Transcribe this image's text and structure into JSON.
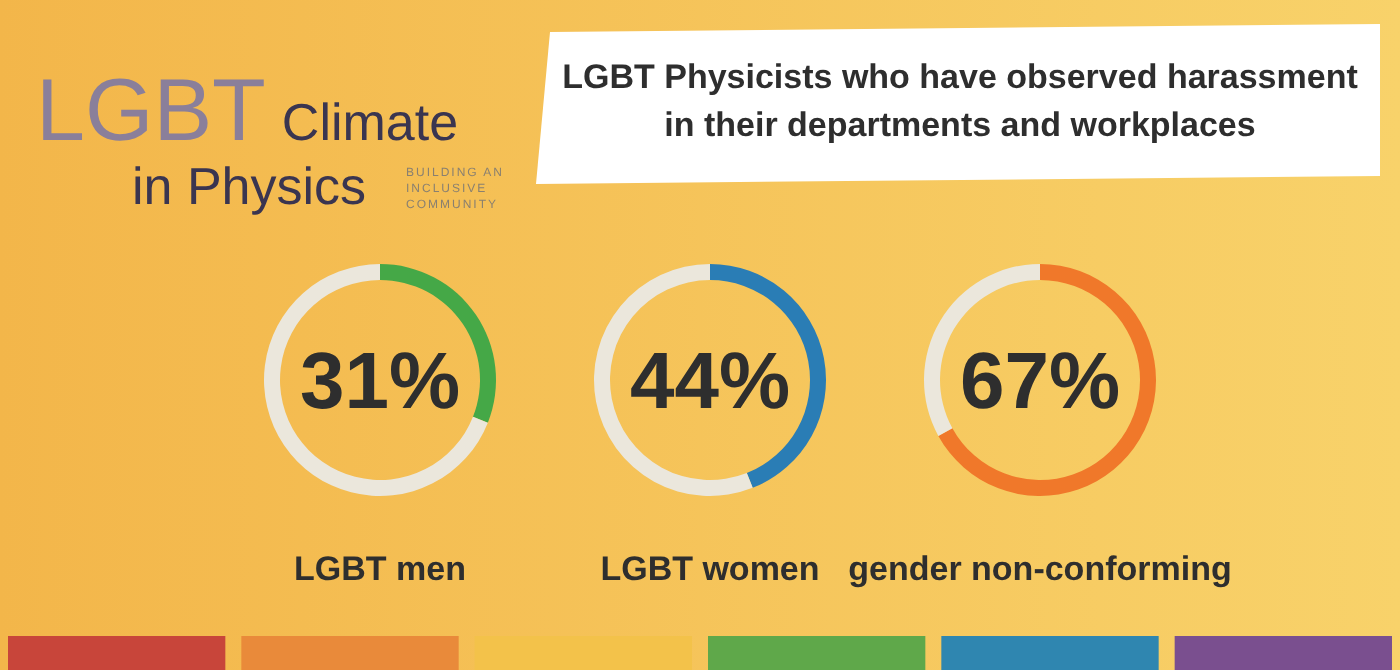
{
  "chart_data": [
    {
      "type": "other",
      "title": "LGBT Climate in Physics",
      "subtitle": "BUILDING AN INCLUSIVE COMMUNITY",
      "annotations": [
        "LGBT Physicists who have observed harassment in their departments and workplaces"
      ]
    },
    {
      "type": "donut",
      "title": "LGBT men",
      "categories": [
        null,
        null
      ],
      "values": [
        31,
        69
      ],
      "colors": [
        "#45a847",
        "#ebe7dc"
      ],
      "annotations": [
        "31%"
      ]
    },
    {
      "type": "donut",
      "title": "LGBT women",
      "categories": [
        null,
        null
      ],
      "values": [
        44,
        56
      ],
      "colors": [
        "#2a7db5",
        "#ebe7dc"
      ],
      "annotations": [
        "44%"
      ]
    },
    {
      "type": "donut",
      "title": "gender non-conforming",
      "categories": [
        null,
        null
      ],
      "values": [
        67,
        33
      ],
      "colors": [
        "#f0782a",
        "#ebe7dc"
      ],
      "annotations": [
        "67%"
      ]
    }
  ]
}
